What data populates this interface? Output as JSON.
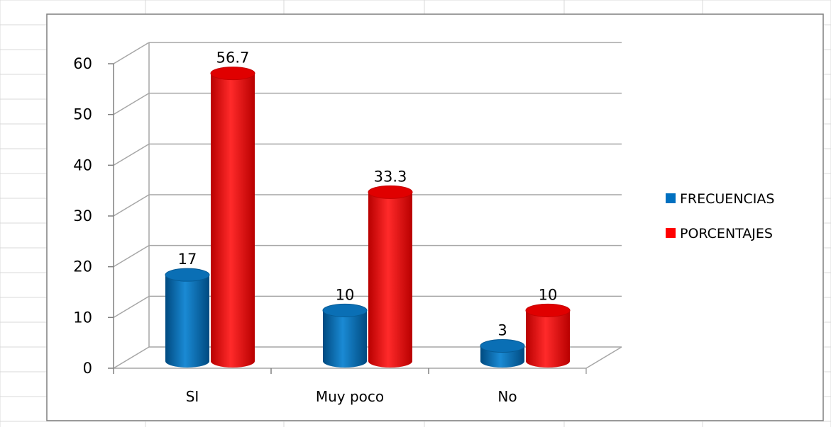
{
  "chart_data": {
    "type": "bar",
    "categories": [
      "SI",
      "Muy poco",
      "No"
    ],
    "series": [
      {
        "name": "FRECUENCIAS",
        "values": [
          17,
          10,
          3
        ],
        "color": "#0070c0"
      },
      {
        "name": "PORCENTAJES",
        "values": [
          56.7,
          33.3,
          10
        ],
        "color": "#ff0000"
      }
    ],
    "data_labels": [
      [
        "17",
        "10",
        "3"
      ],
      [
        "56.7",
        "33.3",
        "10"
      ]
    ],
    "ylim": [
      0,
      60
    ],
    "yticks": [
      0,
      10,
      20,
      30,
      40,
      50,
      60
    ],
    "title": "",
    "xlabel": "",
    "ylabel": "",
    "grid": true,
    "style": "3d-cylinder",
    "legend_position": "right"
  }
}
